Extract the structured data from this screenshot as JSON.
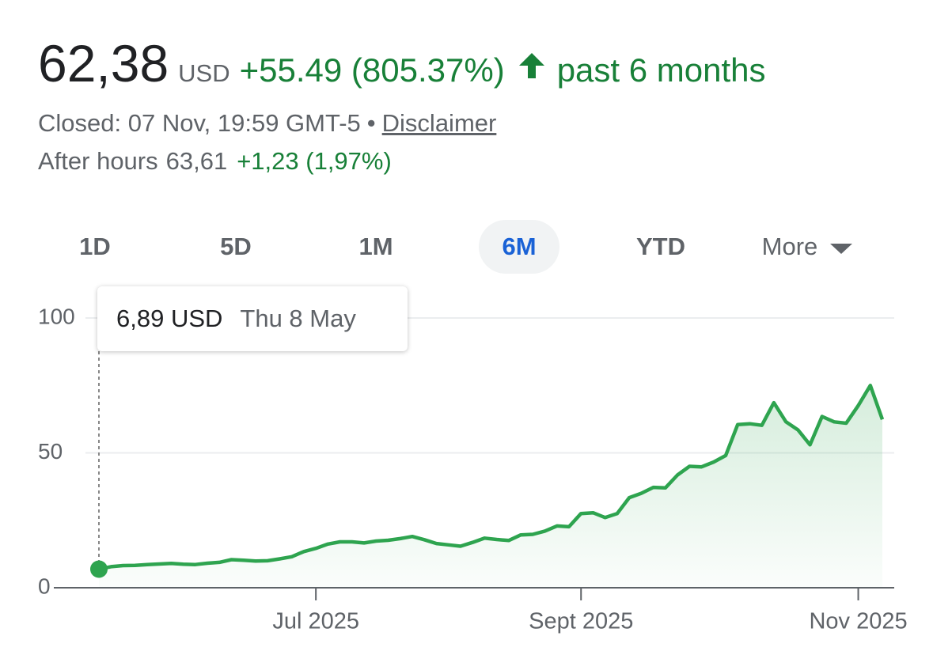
{
  "header": {
    "price": "62,38",
    "currency": "USD",
    "change": "+55.49 (805.37%)",
    "period": "past 6 months",
    "status": "Closed: 07 Nov, 19:59 GMT-5",
    "separator": "•",
    "disclaimer": "Disclaimer",
    "after_hours_label": "After hours",
    "after_hours_price": "63,61",
    "after_hours_change": "+1,23 (1,97%)"
  },
  "tabs": {
    "items": [
      "1D",
      "5D",
      "1M",
      "6M",
      "YTD",
      "More"
    ],
    "active": "6M"
  },
  "tooltip": {
    "price": "6,89 USD",
    "date": "Thu 8 May"
  },
  "chart_data": {
    "type": "line",
    "color": "#2ea44f",
    "grid": true,
    "categories": [
      null,
      null,
      null,
      null,
      null,
      null,
      null,
      null,
      null,
      null,
      null,
      null,
      null,
      null,
      null,
      null,
      null,
      null,
      "Jul 2025",
      null,
      null,
      null,
      null,
      null,
      null,
      null,
      null,
      null,
      null,
      null,
      null,
      null,
      null,
      null,
      null,
      null,
      null,
      null,
      null,
      null,
      "Sept 2025",
      null,
      null,
      null,
      null,
      null,
      null,
      null,
      null,
      null,
      null,
      null,
      null,
      null,
      null,
      null,
      null,
      null,
      null,
      null,
      null,
      null,
      null,
      "Nov 2025",
      null,
      null
    ],
    "values": [
      6.89,
      7.8,
      8.2,
      8.3,
      8.6,
      8.8,
      9.0,
      8.7,
      8.6,
      9.1,
      9.4,
      10.4,
      10.2,
      9.9,
      10.0,
      10.7,
      11.5,
      13.4,
      14.6,
      16.2,
      17.0,
      17.0,
      16.6,
      17.3,
      17.6,
      18.2,
      19.0,
      17.8,
      16.4,
      15.9,
      15.4,
      16.8,
      18.4,
      17.9,
      17.5,
      19.6,
      19.8,
      21.0,
      22.9,
      22.6,
      27.5,
      27.8,
      26.0,
      27.5,
      33.4,
      35.0,
      37.2,
      37.0,
      41.8,
      45.0,
      44.8,
      46.6,
      49.0,
      60.5,
      60.8,
      60.2,
      68.6,
      61.5,
      58.5,
      53.0,
      63.5,
      61.5,
      61.0,
      67.5,
      75.0,
      62.38
    ],
    "ylim": [
      0,
      100
    ],
    "yticks": [
      0,
      50,
      100
    ]
  }
}
